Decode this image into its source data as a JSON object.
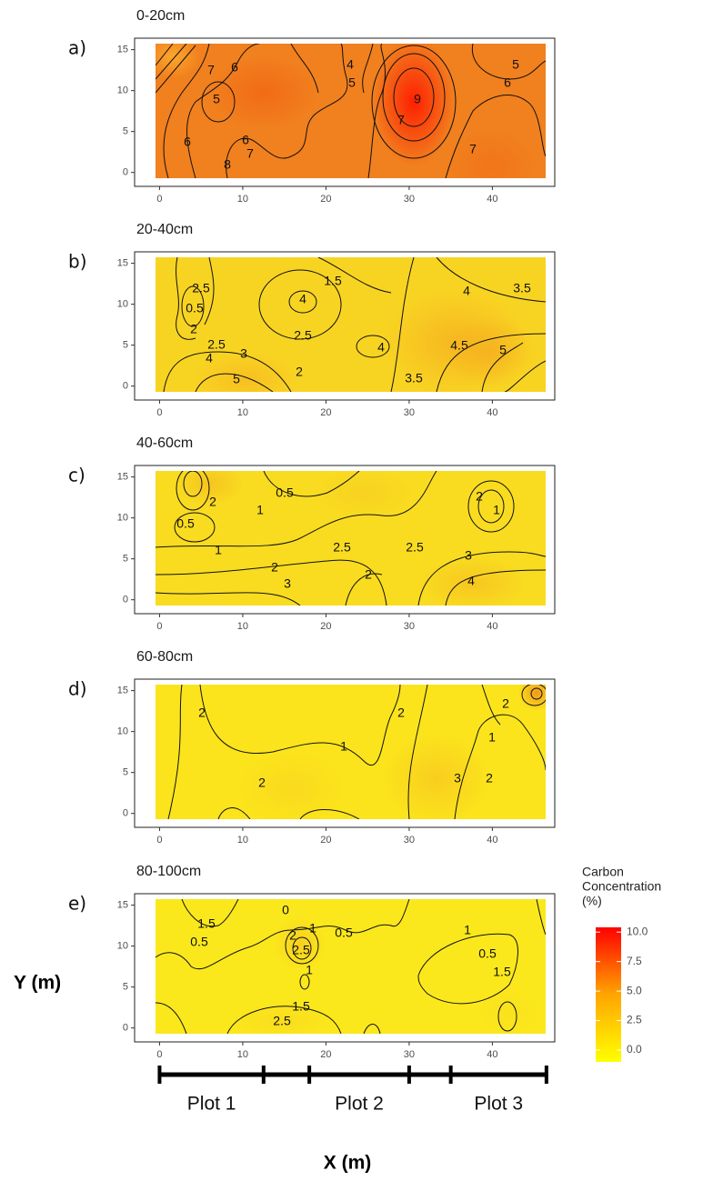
{
  "chart_data": [
    {
      "type": "contour",
      "panel": "a)",
      "title": "0-20cm",
      "xlim": [
        -3,
        47.5
      ],
      "ylim": [
        -1.7,
        16.4
      ],
      "xticks": [
        0,
        10,
        20,
        30,
        40
      ],
      "yticks": [
        0,
        5,
        10,
        15
      ],
      "contour_labels": [
        7,
        6,
        4,
        5,
        5,
        6,
        5,
        9,
        7,
        6,
        6,
        7,
        8,
        7
      ]
    },
    {
      "type": "contour",
      "panel": "b)",
      "title": "20-40cm",
      "xlim": [
        -3,
        47.5
      ],
      "ylim": [
        -1.7,
        16.4
      ],
      "xticks": [
        0,
        10,
        20,
        30,
        40
      ],
      "yticks": [
        0,
        5,
        10,
        15
      ],
      "contour_labels": [
        1.5,
        2.5,
        0.5,
        4,
        4,
        3.5,
        2,
        2.5,
        3,
        2.5,
        4,
        4.5,
        5,
        4,
        5,
        2,
        3.5
      ]
    },
    {
      "type": "contour",
      "panel": "c)",
      "title": "40-60cm",
      "xlim": [
        -3,
        47.5
      ],
      "ylim": [
        -1.7,
        16.4
      ],
      "xticks": [
        0,
        10,
        20,
        30,
        40
      ],
      "yticks": [
        0,
        5,
        10,
        15
      ],
      "contour_labels": [
        0.5,
        2,
        1,
        2,
        0.5,
        1,
        1,
        2.5,
        2.5,
        3,
        2,
        2,
        3,
        4
      ]
    },
    {
      "type": "contour",
      "panel": "d)",
      "title": "60-80cm",
      "xlim": [
        -3,
        47.5
      ],
      "ylim": [
        -1.7,
        16.4
      ],
      "xticks": [
        0,
        10,
        20,
        30,
        40
      ],
      "yticks": [
        0,
        5,
        10,
        15
      ],
      "contour_labels": [
        2,
        2,
        2,
        1,
        1,
        3,
        2,
        2
      ]
    },
    {
      "type": "contour",
      "panel": "e)",
      "title": "80-100cm",
      "xlim": [
        -3,
        47.5
      ],
      "ylim": [
        -1.7,
        16.4
      ],
      "xticks": [
        0,
        10,
        20,
        30,
        40
      ],
      "yticks": [
        0,
        5,
        10,
        15
      ],
      "contour_labels": [
        0,
        1.5,
        1,
        2,
        0.5,
        1,
        0.5,
        2.5,
        0.5,
        1.5,
        1,
        1.5,
        2.5
      ]
    }
  ],
  "figure": {
    "x_label": "X (m)",
    "y_label": "Y (m)",
    "colorbar": {
      "title": [
        "Carbon",
        "Concentration",
        "(%)"
      ],
      "lim": [
        -1,
        10.4
      ],
      "ticks": [
        {
          "value": 10,
          "label": "10.0"
        },
        {
          "value": 7.5,
          "label": "7.5"
        },
        {
          "value": 5,
          "label": "5.0"
        },
        {
          "value": 2.5,
          "label": "2.5"
        },
        {
          "value": 0,
          "label": "0.0"
        }
      ],
      "colors": [
        "#ffff00",
        "#ffa500",
        "#ff0000"
      ]
    },
    "plots": {
      "ticks": [
        0,
        12.5,
        18,
        30,
        35,
        46.5
      ],
      "labels": [
        "Plot 1",
        "Plot 2",
        "Plot 3"
      ]
    }
  }
}
